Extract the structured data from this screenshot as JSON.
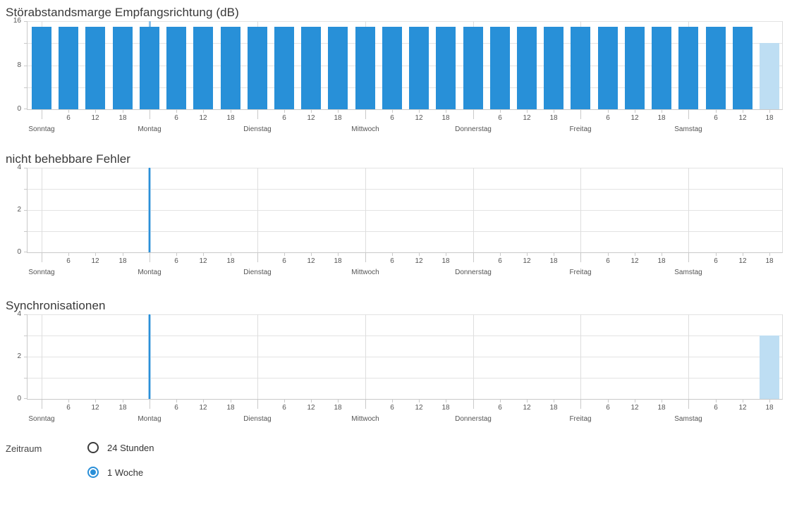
{
  "colors": {
    "bar_blue": "#2890d8",
    "bar_light_blue": "#bedef3",
    "spike_blue": "#2a90d9",
    "spike_edge": "#aed3ee",
    "whisker_light": "#8fc2e9",
    "radio_blue": "#2a8fd8"
  },
  "days": [
    "Sonntag",
    "Montag",
    "Dienstag",
    "Mittwoch",
    "Donnerstag",
    "Freitag",
    "Samstag"
  ],
  "hour_label_values": [
    6,
    12,
    18
  ],
  "chart_data": [
    {
      "type": "bar",
      "title": "Störabstandsmarge Empfangsrichtung (dB)",
      "xlabel": "",
      "ylabel": "",
      "ylim": [
        0,
        16
      ],
      "ytick_labels": [
        0,
        8,
        16
      ],
      "grid_step": 4,
      "x_axis": "hours of week, Sonntag 0:00 to Samstag 18:00, 6h steps",
      "bars": [
        {
          "hour": 0,
          "value": 15
        },
        {
          "hour": 6,
          "value": 15
        },
        {
          "hour": 12,
          "value": 15
        },
        {
          "hour": 18,
          "value": 15
        },
        {
          "hour": 24,
          "value": 15
        },
        {
          "hour": 30,
          "value": 15
        },
        {
          "hour": 36,
          "value": 15
        },
        {
          "hour": 42,
          "value": 15
        },
        {
          "hour": 48,
          "value": 15
        },
        {
          "hour": 54,
          "value": 15
        },
        {
          "hour": 60,
          "value": 15
        },
        {
          "hour": 66,
          "value": 15
        },
        {
          "hour": 72,
          "value": 15
        },
        {
          "hour": 78,
          "value": 15
        },
        {
          "hour": 84,
          "value": 15
        },
        {
          "hour": 90,
          "value": 15
        },
        {
          "hour": 96,
          "value": 15
        },
        {
          "hour": 102,
          "value": 15
        },
        {
          "hour": 108,
          "value": 15
        },
        {
          "hour": 114,
          "value": 15
        },
        {
          "hour": 120,
          "value": 15
        },
        {
          "hour": 126,
          "value": 15
        },
        {
          "hour": 132,
          "value": 15
        },
        {
          "hour": 138,
          "value": 15
        },
        {
          "hour": 144,
          "value": 15
        },
        {
          "hour": 150,
          "value": 15
        },
        {
          "hour": 156,
          "value": 15
        },
        {
          "hour": 162,
          "value": 12,
          "light": true
        }
      ],
      "max_whiskers": [
        {
          "hour": 24,
          "from": 15,
          "to": 16
        }
      ],
      "spikes": []
    },
    {
      "type": "bar",
      "title": "nicht behebbare Fehler",
      "xlabel": "",
      "ylabel": "",
      "ylim": [
        0,
        4
      ],
      "ytick_labels": [
        0,
        2,
        4
      ],
      "grid_step": 1,
      "x_axis": "hours of week, Sonntag 0:00 to Samstag 18:00, 6h steps",
      "bars": [],
      "max_whiskers": [],
      "spikes": [
        {
          "hour": 24,
          "value": 4
        }
      ]
    },
    {
      "type": "bar",
      "title": "Synchronisationen",
      "xlabel": "",
      "ylabel": "",
      "ylim": [
        0,
        4
      ],
      "ytick_labels": [
        0,
        2,
        4
      ],
      "grid_step": 1,
      "x_axis": "hours of week, Sonntag 0:00 to Samstag 18:00, 6h steps",
      "bars": [
        {
          "hour": 162,
          "value": 3,
          "light": true
        }
      ],
      "max_whiskers": [],
      "spikes": [
        {
          "hour": 24,
          "value": 4
        }
      ]
    }
  ],
  "zeitraum": {
    "label": "Zeitraum",
    "options": [
      {
        "label": "24 Stunden",
        "selected": false
      },
      {
        "label": "1 Woche",
        "selected": true
      }
    ]
  }
}
